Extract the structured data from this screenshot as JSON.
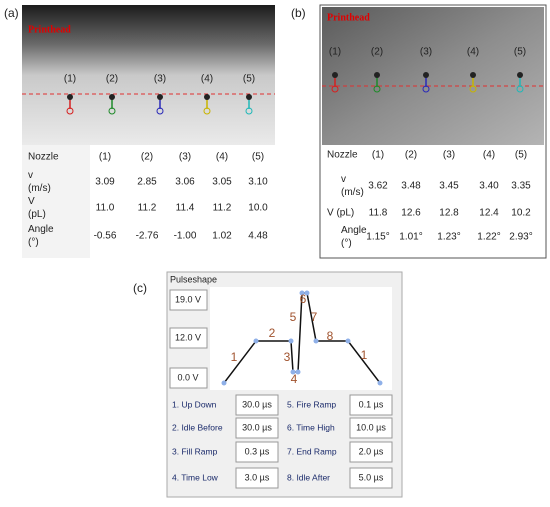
{
  "panel_a": {
    "label": "(a)",
    "photo_label": "Printhead",
    "nozzles": [
      "(1)",
      "(2)",
      "(3)",
      "(4)",
      "(5)"
    ],
    "table": {
      "header": [
        "Nozzle",
        "(1)",
        "(2)",
        "(3)",
        "(4)",
        "(5)"
      ],
      "rows": [
        {
          "label": [
            "v",
            "(m/s)"
          ],
          "cells": [
            "3.09",
            "2.85",
            "3.06",
            "3.05",
            "3.10"
          ]
        },
        {
          "label": [
            "V",
            "(pL)"
          ],
          "cells": [
            "11.0",
            "11.2",
            "11.4",
            "11.2",
            "10.0"
          ]
        },
        {
          "label": [
            "Angle",
            "(°)"
          ],
          "cells": [
            "-0.56",
            "-2.76",
            "-1.00",
            "1.02",
            "4.48"
          ]
        }
      ]
    }
  },
  "panel_b": {
    "label": "(b)",
    "photo_label": "Printhead",
    "nozzles": [
      "(1)",
      "(2)",
      "(3)",
      "(4)",
      "(5)"
    ],
    "table": {
      "header": [
        "Nozzle",
        "(1)",
        "(2)",
        "(3)",
        "(4)",
        "(5)"
      ],
      "rows": [
        {
          "label": [
            "v",
            "(m/s)"
          ],
          "cells": [
            "3.62",
            "3.48",
            "3.45",
            "3.40",
            "3.35"
          ]
        },
        {
          "label": [
            "V (pL)"
          ],
          "cells": [
            "11.8",
            "12.6",
            "12.8",
            "12.4",
            "10.2"
          ]
        },
        {
          "label": [
            "Angle",
            "(°)"
          ],
          "cells": [
            "1.15°",
            "1.01°",
            "1.23°",
            "1.22°",
            "2.93°"
          ]
        }
      ]
    }
  },
  "panel_c": {
    "label": "(c)",
    "title": "Pulseshape",
    "voltages": [
      "19.0 V",
      "12.0 V",
      "0.0 V"
    ],
    "segment_labels": [
      "1",
      "2",
      "3",
      "4",
      "5",
      "6",
      "7",
      "8",
      "1"
    ],
    "parameters": [
      {
        "name": "1. Up Down",
        "value": "30.0 µs"
      },
      {
        "name": "2. Idle Before",
        "value": "30.0 µs"
      },
      {
        "name": "3. Fill Ramp",
        "value": "0.3 µs"
      },
      {
        "name": "4. Time Low",
        "value": "3.0 µs"
      },
      {
        "name": "5. Fire Ramp",
        "value": "0.1 µs"
      },
      {
        "name": "6. Time High",
        "value": "10.0 µs"
      },
      {
        "name": "7. End Ramp",
        "value": "2.0 µs"
      },
      {
        "name": "8. Idle After",
        "value": "5.0 µs"
      }
    ]
  }
}
